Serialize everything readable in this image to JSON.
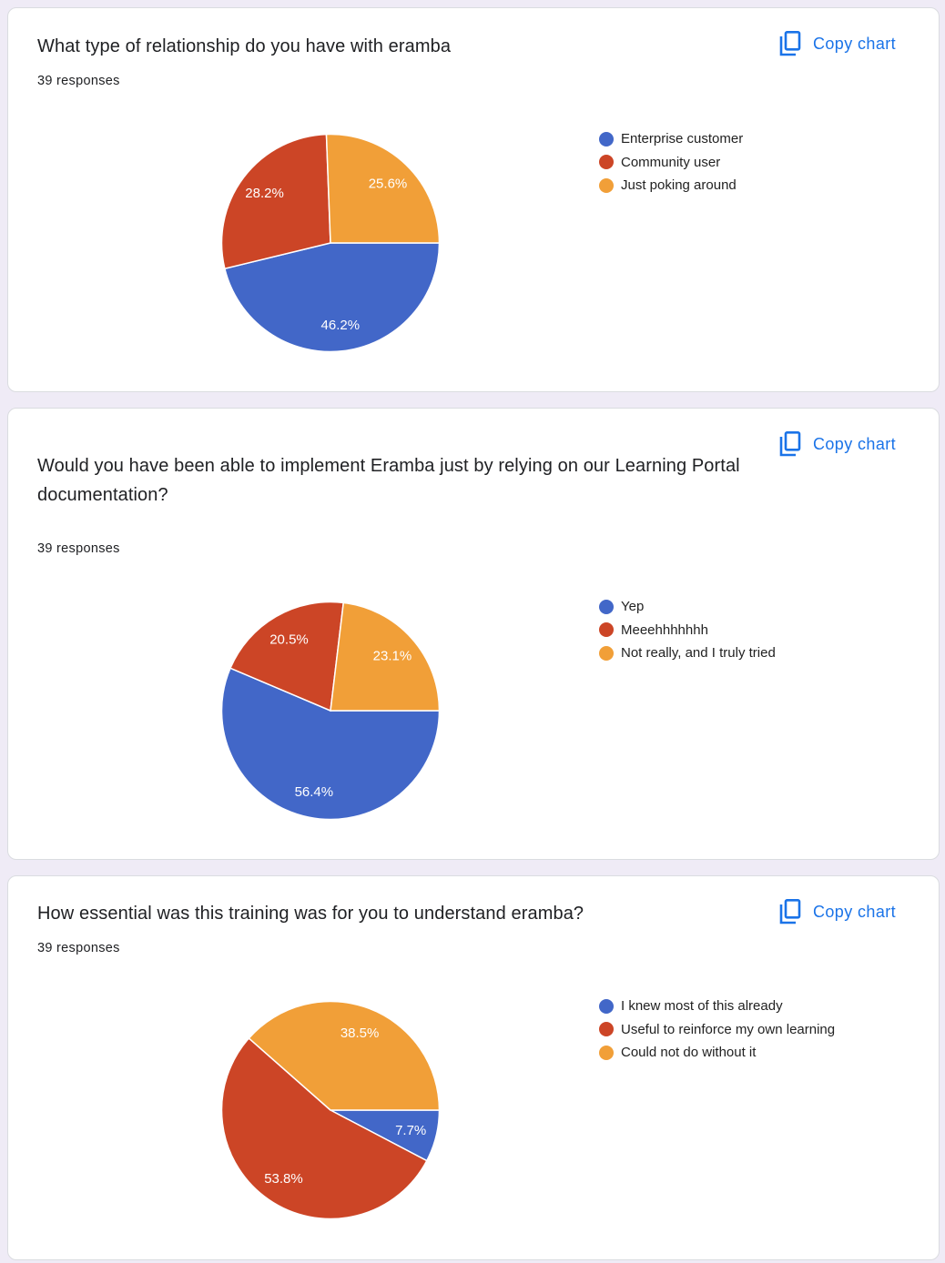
{
  "copy_label": "Copy chart",
  "icons": {
    "copy": "copy-icon"
  },
  "colors": {
    "blue": "#4267c8",
    "red": "#cc4526",
    "orange": "#f19f38",
    "accent": "#1a73e8"
  },
  "chart_data": [
    {
      "type": "pie",
      "title": "What type of relationship do you have with eramba",
      "subtitle": "39 responses",
      "legend_position": "right",
      "categories": [
        "Enterprise customer",
        "Community user",
        "Just poking around"
      ],
      "values": [
        46.2,
        28.2,
        25.6
      ],
      "labels": [
        "46.2%",
        "28.2%",
        "25.6%"
      ],
      "colors": [
        "#4267c8",
        "#cc4526",
        "#f19f38"
      ]
    },
    {
      "type": "pie",
      "title": "Would you have been able to implement Eramba just by relying on our Learning Portal documentation?",
      "subtitle": "39 responses",
      "legend_position": "right",
      "categories": [
        "Yep",
        "Meeehhhhhhh",
        "Not really, and I truly tried"
      ],
      "values": [
        56.4,
        20.5,
        23.1
      ],
      "labels": [
        "56.4%",
        "20.5%",
        "23.1%"
      ],
      "colors": [
        "#4267c8",
        "#cc4526",
        "#f19f38"
      ]
    },
    {
      "type": "pie",
      "title": "How essential was this training was for you to understand eramba?",
      "subtitle": "39 responses",
      "legend_position": "right",
      "categories": [
        "I knew most of this already",
        "Useful to reinforce my own learning",
        "Could not do without it"
      ],
      "values": [
        7.7,
        53.8,
        38.5
      ],
      "labels": [
        "7.7%",
        "53.8%",
        "38.5%"
      ],
      "colors": [
        "#4267c8",
        "#cc4526",
        "#f19f38"
      ]
    }
  ]
}
